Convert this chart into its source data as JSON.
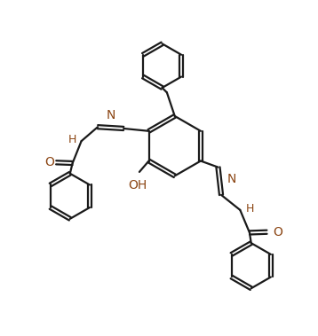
{
  "background_color": "#ffffff",
  "line_color": "#1a1a1a",
  "line_width": 1.6,
  "font_size": 9,
  "label_color": "#8B4513",
  "fig_width": 3.58,
  "fig_height": 3.79,
  "dpi": 100,
  "xlim": [
    0,
    10
  ],
  "ylim": [
    0,
    10.6
  ]
}
